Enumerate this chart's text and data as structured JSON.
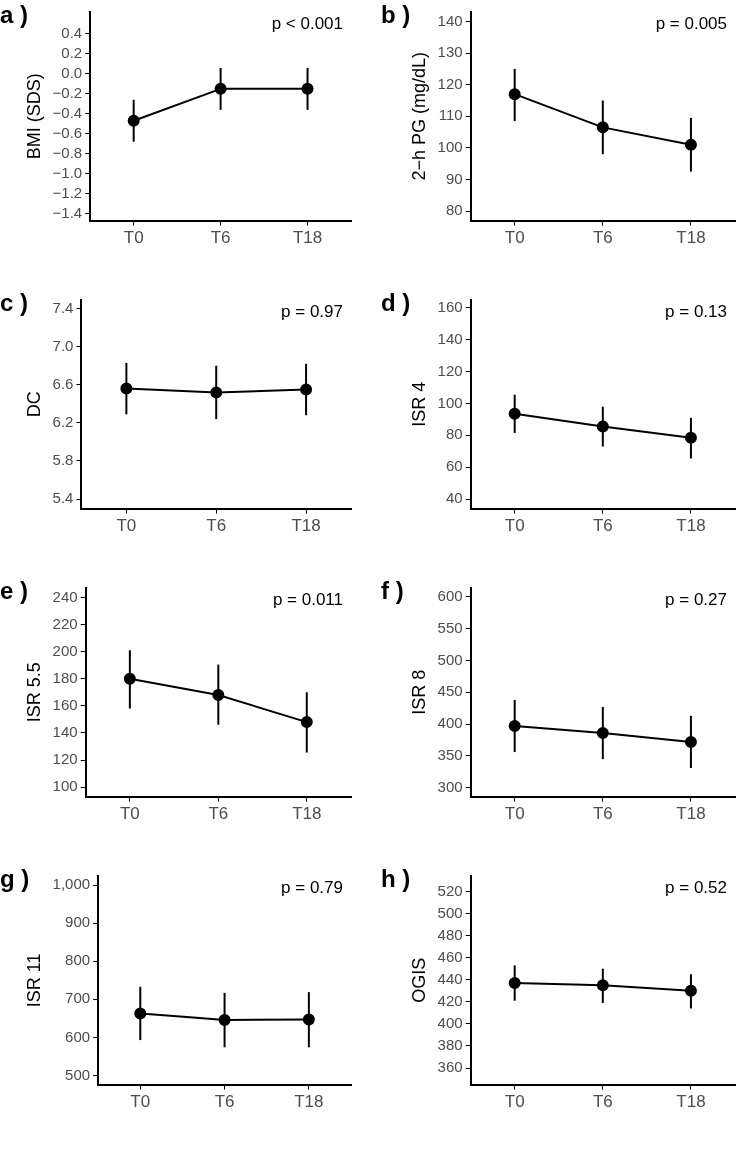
{
  "chart_data": [
    {
      "type": "line",
      "title": "a )",
      "ylabel": "BMI (SDS)",
      "annotations": [
        "p < 0.001"
      ],
      "categories": [
        "T0",
        "T6",
        "T18"
      ],
      "ylim": [
        -1.47,
        0.62
      ],
      "yticks": [
        {
          "value": -1.4,
          "label": "−1.4"
        },
        {
          "value": -1.2,
          "label": "−1.2"
        },
        {
          "value": -1.0,
          "label": "−1.0"
        },
        {
          "value": -0.8,
          "label": "−0.8"
        },
        {
          "value": -0.6,
          "label": "−0.6"
        },
        {
          "value": -0.4,
          "label": "−0.4"
        },
        {
          "value": -0.2,
          "label": "−0.2"
        },
        {
          "value": 0,
          "label": "0.0"
        },
        {
          "value": 0.2,
          "label": "0.2"
        },
        {
          "value": 0.4,
          "label": "0.4"
        }
      ],
      "grid": false,
      "marker": "circle",
      "line_style": "solid",
      "series": [
        {
          "color": "#000000",
          "values": [
            -0.47,
            -0.15,
            -0.15
          ],
          "errors": [
            [
              -0.68,
              -0.26
            ],
            [
              -0.36,
              0.06
            ],
            [
              -0.36,
              0.06
            ]
          ]
        }
      ]
    },
    {
      "type": "line",
      "title": "b )",
      "ylabel": "2−h PG (mg/dL)",
      "annotations": [
        "p = 0.005"
      ],
      "categories": [
        "T0",
        "T6",
        "T18"
      ],
      "ylim": [
        77,
        143
      ],
      "yticks": [
        80,
        90,
        100,
        110,
        120,
        130,
        140
      ],
      "grid": false,
      "marker": "circle",
      "line_style": "solid",
      "series": [
        {
          "color": "#000000",
          "values": [
            117,
            106.5,
            101
          ],
          "errors": [
            [
              108.5,
              125
            ],
            [
              98,
              115
            ],
            [
              92.5,
              109.5
            ]
          ]
        }
      ]
    },
    {
      "type": "line",
      "title": "c )",
      "ylabel": "DC",
      "annotations": [
        "p = 0.97"
      ],
      "categories": [
        "T0",
        "T6",
        "T18"
      ],
      "ylim": [
        5.3,
        7.49
      ],
      "yticks": [
        {
          "value": 5.4,
          "label": "5.4"
        },
        {
          "value": 5.8,
          "label": "5.8"
        },
        {
          "value": 6.2,
          "label": "6.2"
        },
        {
          "value": 6.6,
          "label": "6.6"
        },
        {
          "value": 7.0,
          "label": "7.0"
        },
        {
          "value": 7.4,
          "label": "7.4"
        }
      ],
      "grid": false,
      "marker": "circle",
      "line_style": "solid",
      "series": [
        {
          "color": "#000000",
          "values": [
            6.56,
            6.52,
            6.55
          ],
          "errors": [
            [
              6.29,
              6.83
            ],
            [
              6.24,
              6.8
            ],
            [
              6.28,
              6.82
            ]
          ]
        }
      ]
    },
    {
      "type": "line",
      "title": "d )",
      "ylabel": "ISR 4",
      "annotations": [
        "p = 0.13"
      ],
      "categories": [
        "T0",
        "T6",
        "T18"
      ],
      "ylim": [
        34,
        165
      ],
      "yticks": [
        40,
        60,
        80,
        100,
        120,
        140,
        160
      ],
      "grid": false,
      "marker": "circle",
      "line_style": "solid",
      "series": [
        {
          "color": "#000000",
          "values": [
            93.5,
            85.5,
            78.5
          ],
          "errors": [
            [
              81.5,
              105.5
            ],
            [
              73,
              98
            ],
            [
              65.5,
              91
            ]
          ]
        }
      ]
    },
    {
      "type": "line",
      "title": "e )",
      "ylabel": "ISR 5.5",
      "annotations": [
        "p = 0.011"
      ],
      "categories": [
        "T0",
        "T6",
        "T18"
      ],
      "ylim": [
        93,
        247
      ],
      "yticks": [
        100,
        120,
        140,
        160,
        180,
        200,
        220,
        240
      ],
      "grid": false,
      "marker": "circle",
      "line_style": "solid",
      "series": [
        {
          "color": "#000000",
          "values": [
            180,
            168,
            148
          ],
          "errors": [
            [
              158,
              201
            ],
            [
              146,
              190.5
            ],
            [
              125.5,
              170
            ]
          ]
        }
      ]
    },
    {
      "type": "line",
      "title": "f )",
      "ylabel": "ISR 8",
      "annotations": [
        "p = 0.27"
      ],
      "categories": [
        "T0",
        "T6",
        "T18"
      ],
      "ylim": [
        286,
        614
      ],
      "yticks": [
        300,
        350,
        400,
        450,
        500,
        550,
        600
      ],
      "grid": false,
      "marker": "circle",
      "line_style": "solid",
      "series": [
        {
          "color": "#000000",
          "values": [
            397,
            386,
            372
          ],
          "errors": [
            [
              356,
              438
            ],
            [
              345,
              427
            ],
            [
              331,
              413
            ]
          ]
        }
      ]
    },
    {
      "type": "line",
      "title": "g )",
      "ylabel": "ISR 11",
      "annotations": [
        "p = 0.79"
      ],
      "categories": [
        "T0",
        "T6",
        "T18"
      ],
      "ylim": [
        476,
        1024
      ],
      "yticks": [
        500,
        600,
        700,
        800,
        900,
        {
          "value": 1000,
          "label": "1,000"
        }
      ],
      "grid": false,
      "marker": "circle",
      "line_style": "solid",
      "series": [
        {
          "color": "#000000",
          "values": [
            663,
            646,
            647
          ],
          "errors": [
            [
              593,
              733
            ],
            [
              574,
              717
            ],
            [
              574,
              719
            ]
          ]
        }
      ]
    },
    {
      "type": "line",
      "title": "h )",
      "ylabel": "OGIS",
      "annotations": [
        "p = 0.52"
      ],
      "categories": [
        "T0",
        "T6",
        "T18"
      ],
      "ylim": [
        345,
        534
      ],
      "yticks": [
        360,
        380,
        400,
        420,
        440,
        460,
        480,
        500,
        520
      ],
      "grid": false,
      "marker": "circle",
      "line_style": "solid",
      "series": [
        {
          "color": "#000000",
          "values": [
            437,
            435,
            430
          ],
          "errors": [
            [
              421,
              453
            ],
            [
              419,
              450
            ],
            [
              414,
              445
            ]
          ]
        }
      ]
    }
  ]
}
